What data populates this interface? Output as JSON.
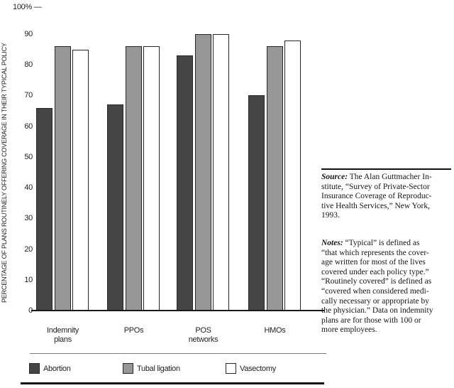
{
  "chart": {
    "top_axis_label": "100% —"
  },
  "chart_data": {
    "type": "bar",
    "title": "",
    "categories": [
      "Indemnity\nplans",
      "PPOs",
      "POS\nnetworks",
      "HMOs"
    ],
    "series": [
      {
        "name": "Abortion",
        "color": "#454545",
        "values": [
          66,
          67,
          83,
          70
        ]
      },
      {
        "name": "Tubal ligation",
        "color": "#979797",
        "values": [
          86,
          86,
          90,
          86
        ]
      },
      {
        "name": "Vasectomy",
        "color": "#ffffff",
        "values": [
          85,
          86,
          90,
          88
        ]
      }
    ],
    "xlabel": "",
    "ylabel": "PERCENTAGE OF PLANS ROUTINELY OFFERING COVERAGE IN THEIR TYPICAL POLICY",
    "ylim": [
      0,
      100
    ],
    "yticks": [
      0,
      10,
      20,
      30,
      40,
      50,
      60,
      70,
      80,
      90
    ],
    "top_tick_label": "100%",
    "grid": false,
    "legend_position": "bottom"
  },
  "legend": {
    "items": [
      {
        "label": "Abortion",
        "color": "#454545"
      },
      {
        "label": "Tubal ligation",
        "color": "#979797"
      },
      {
        "label": "Vasectomy",
        "color": "#ffffff"
      }
    ]
  },
  "source_note": {
    "lead": "Source:",
    "text": " The Alan Guttmacher In-\nstitute, “Survey of Private-Sector\nInsurance Coverage of Reproduc-\ntive Health Services,” New York,\n1993."
  },
  "notes": {
    "lead": "Notes:",
    "text": " “Typical” is defined as\n“that which represents the cover-\nage written for most of the lives\ncovered under each policy type.”\n“Routinely covered” is defined as\n“covered when considered medi-\ncally necessary or appropriate by\nthe physician.” Data on indemnity\nplans are for those with 100 or\nmore employees."
  },
  "colors": {
    "bar_outline": "#262626",
    "axis_line": "#1a1a1a",
    "legend_rule": "#7a7a7a",
    "bottom_rule": "#111111"
  }
}
